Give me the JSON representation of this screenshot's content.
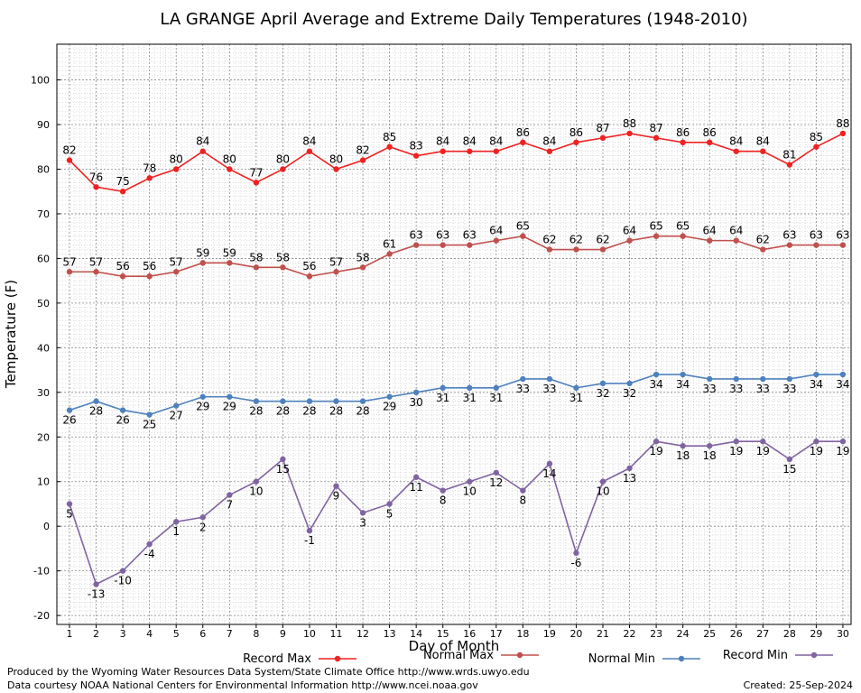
{
  "chart_data": {
    "type": "line",
    "title": "LA GRANGE April Average and Extreme Daily Temperatures (1948-2010)",
    "xlabel": "Day of Month",
    "ylabel": "Temperature (F)",
    "ylim": [
      -22,
      108
    ],
    "y_ticks": [
      -20,
      -10,
      0,
      10,
      20,
      30,
      40,
      50,
      60,
      70,
      80,
      90,
      100
    ],
    "x": [
      1,
      2,
      3,
      4,
      5,
      6,
      7,
      8,
      9,
      10,
      11,
      12,
      13,
      14,
      15,
      16,
      17,
      18,
      19,
      20,
      21,
      22,
      23,
      24,
      25,
      26,
      27,
      28,
      29,
      30
    ],
    "grid": true,
    "legend_position": "bottom",
    "series": [
      {
        "name": "Record Max",
        "color": "#ee2222",
        "label_pos": "above",
        "values": [
          82,
          76,
          75,
          78,
          80,
          84,
          80,
          77,
          80,
          84,
          80,
          82,
          85,
          83,
          84,
          84,
          84,
          86,
          84,
          86,
          87,
          88,
          87,
          86,
          86,
          84,
          84,
          81,
          85,
          88
        ]
      },
      {
        "name": "Normal Max",
        "color": "#c0504d",
        "label_pos": "above",
        "values": [
          57,
          57,
          56,
          56,
          57,
          59,
          59,
          58,
          58,
          56,
          57,
          58,
          61,
          63,
          63,
          63,
          64,
          65,
          62,
          62,
          62,
          64,
          65,
          65,
          64,
          64,
          62,
          63,
          63,
          63
        ]
      },
      {
        "name": "Normal Min",
        "color": "#4f81bd",
        "label_pos": "below",
        "values": [
          26,
          28,
          26,
          25,
          27,
          29,
          29,
          28,
          28,
          28,
          28,
          28,
          29,
          30,
          31,
          31,
          31,
          33,
          33,
          31,
          32,
          32,
          34,
          34,
          33,
          33,
          33,
          33,
          34,
          34
        ]
      },
      {
        "name": "Record Min",
        "color": "#8064a2",
        "label_pos": "below",
        "values": [
          5,
          -13,
          -10,
          -4,
          1,
          2,
          7,
          10,
          15,
          -1,
          9,
          3,
          5,
          11,
          8,
          10,
          12,
          8,
          14,
          -6,
          10,
          13,
          19,
          18,
          18,
          19,
          19,
          15,
          19,
          19
        ]
      }
    ]
  },
  "footer": {
    "producer": "Produced by the Wyoming Water Resources Data System/State Climate Office http://www.wrds.uwyo.edu",
    "source": "Data courtesy NOAA National Centers for Environmental Information http://www.ncei.noaa.gov",
    "created": "Created:  25-Sep-2024"
  }
}
